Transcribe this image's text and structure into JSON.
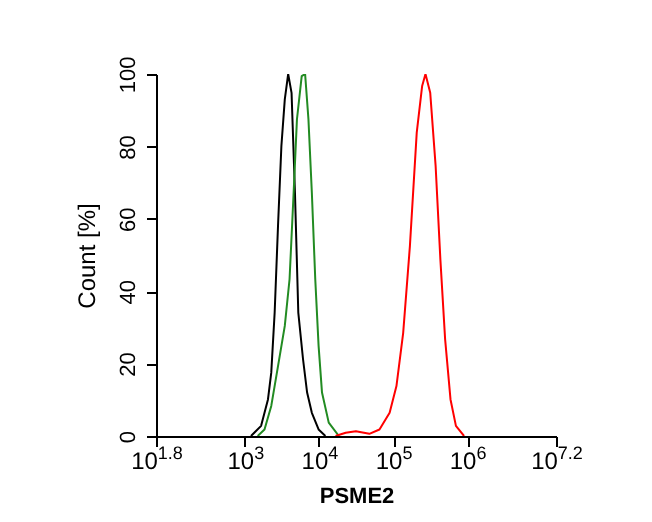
{
  "chart_data": {
    "type": "line",
    "xlabel": "PSME2",
    "ylabel": "Count [%]",
    "log": "x",
    "xlim": [
      63.0957,
      15848932
    ],
    "xticks": [
      {
        "value": 63.0957,
        "label": "10$^{1.8}$"
      },
      {
        "value": 1000,
        "label": "10$^{3}$"
      },
      {
        "value": 10000,
        "label": "10$^{4}$"
      },
      {
        "value": 100000,
        "label": "10$^{5}$"
      },
      {
        "value": 1000000,
        "label": "10$^{6}$"
      },
      {
        "value": 15848932,
        "label": "10$^{7.2}$"
      }
    ],
    "ylim": [
      0,
      100
    ],
    "yticks": [
      0,
      20,
      40,
      60,
      80,
      100
    ],
    "grid": false,
    "legend": false,
    "series": [
      {
        "color": "#000000",
        "x": [
          1208,
          1656,
          2049,
          2270,
          2523,
          2800,
          3110,
          3457,
          3840,
          4266,
          4742,
          5260,
          6095,
          6918,
          8017,
          9886,
          12220
        ],
        "values": [
          0,
          2.8,
          10.1,
          17.5,
          34.1,
          58.0,
          80.1,
          93.0,
          100,
          94.8,
          67.2,
          34.1,
          21.2,
          12.0,
          6.4,
          1.8,
          0
        ]
      },
      {
        "color": "#228b22",
        "x": [
          1489,
          1840,
          2270,
          2800,
          3457,
          4008,
          4550,
          5045,
          5848,
          6500,
          7210,
          8017,
          8913,
          9886,
          10990,
          13550,
          18580
        ],
        "values": [
          0,
          1.8,
          8.3,
          19.3,
          30.4,
          43.3,
          67.2,
          87.5,
          99.4,
          100,
          87.5,
          67.2,
          43.3,
          24.9,
          12.0,
          3.7,
          0
        ]
      },
      {
        "color": "#ff0000",
        "x": [
          16750,
          22960,
          31480,
          47860,
          65600,
          89950,
          111200,
          137100,
          169000,
          208900,
          247200,
          274200,
          317700,
          375800,
          435500,
          505000,
          597000,
          706300,
          909500
        ],
        "values": [
          0,
          0.9,
          1.3,
          0.6,
          1.8,
          6.4,
          13.8,
          28.5,
          52.5,
          83.8,
          96.7,
          100,
          94.8,
          74.6,
          48.8,
          26.7,
          10.1,
          2.8,
          0
        ]
      }
    ]
  }
}
